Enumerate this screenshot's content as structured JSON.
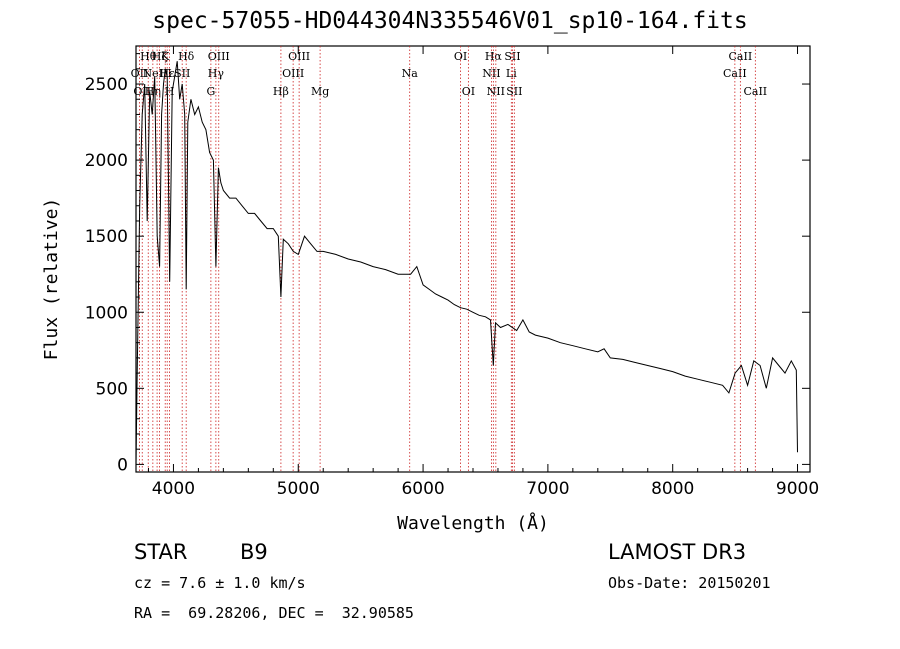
{
  "chart_data": {
    "type": "line",
    "title": "spec-57055-HD044304N335546V01_sp10-164.fits",
    "xlabel": "Wavelength (Å)",
    "ylabel": "Flux (relative)",
    "xlim": [
      3700,
      9100
    ],
    "ylim": [
      -50,
      2750
    ],
    "xticks": [
      {
        "value": 4000,
        "label": "4000"
      },
      {
        "value": 5000,
        "label": "5000"
      },
      {
        "value": 6000,
        "label": "6000"
      },
      {
        "value": 7000,
        "label": "7000"
      },
      {
        "value": 8000,
        "label": "8000"
      },
      {
        "value": 9000,
        "label": "9000"
      }
    ],
    "yticks": [
      {
        "value": 0,
        "label": "0"
      },
      {
        "value": 500,
        "label": "500"
      },
      {
        "value": 1000,
        "label": "1000"
      },
      {
        "value": 1500,
        "label": "1500"
      },
      {
        "value": 2000,
        "label": "2000"
      },
      {
        "value": 2500,
        "label": "2500"
      }
    ],
    "series": [
      {
        "name": "spectrum",
        "x": [
          3700,
          3710,
          3730,
          3750,
          3770,
          3790,
          3810,
          3830,
          3850,
          3870,
          3889,
          3905,
          3920,
          3935,
          3950,
          3970,
          3990,
          4010,
          4030,
          4050,
          4070,
          4090,
          4102,
          4115,
          4140,
          4170,
          4200,
          4230,
          4260,
          4290,
          4320,
          4340,
          4360,
          4380,
          4400,
          4450,
          4500,
          4550,
          4600,
          4650,
          4700,
          4750,
          4800,
          4840,
          4861,
          4880,
          4920,
          4960,
          5000,
          5050,
          5100,
          5150,
          5200,
          5300,
          5400,
          5500,
          5600,
          5700,
          5800,
          5900,
          5950,
          6000,
          6050,
          6100,
          6150,
          6200,
          6250,
          6300,
          6350,
          6400,
          6450,
          6500,
          6540,
          6563,
          6580,
          6620,
          6680,
          6750,
          6800,
          6850,
          6900,
          7000,
          7100,
          7200,
          7300,
          7400,
          7450,
          7500,
          7600,
          7700,
          7800,
          7900,
          8000,
          8100,
          8200,
          8300,
          8400,
          8450,
          8500,
          8550,
          8600,
          8650,
          8700,
          8750,
          8800,
          8850,
          8900,
          8950,
          8990,
          9000
        ],
        "y": [
          0,
          600,
          1700,
          2300,
          2500,
          1600,
          2450,
          2300,
          2550,
          1500,
          1300,
          2300,
          2500,
          2600,
          2550,
          1200,
          2450,
          2550,
          2650,
          2400,
          2500,
          2300,
          1150,
          2250,
          2400,
          2300,
          2350,
          2250,
          2200,
          2050,
          2000,
          1300,
          1950,
          1850,
          1800,
          1750,
          1750,
          1700,
          1650,
          1650,
          1600,
          1550,
          1550,
          1500,
          1100,
          1480,
          1450,
          1400,
          1380,
          1500,
          1450,
          1400,
          1400,
          1380,
          1350,
          1330,
          1300,
          1280,
          1250,
          1250,
          1300,
          1180,
          1150,
          1120,
          1100,
          1080,
          1050,
          1030,
          1020,
          1000,
          980,
          970,
          950,
          650,
          930,
          900,
          920,
          880,
          950,
          870,
          850,
          830,
          800,
          780,
          760,
          740,
          760,
          700,
          690,
          670,
          650,
          630,
          610,
          580,
          560,
          540,
          520,
          470,
          600,
          650,
          520,
          680,
          650,
          500,
          700,
          650,
          600,
          680,
          620,
          80
        ]
      }
    ],
    "lines": [
      {
        "x": 3728,
        "label": "OII",
        "row": 2
      },
      {
        "x": 3750,
        "label": "OII",
        "row": 3
      },
      {
        "x": 3798,
        "label": "Hθ",
        "row": 1
      },
      {
        "x": 3835,
        "label": "Hη",
        "row": 3
      },
      {
        "x": 3869,
        "label": "NeIII",
        "row": 2
      },
      {
        "x": 3889,
        "label": "Hζ",
        "row": 1
      },
      {
        "x": 3934,
        "label": "K",
        "row": 1
      },
      {
        "x": 3950,
        "label": "Hε",
        "row": 2
      },
      {
        "x": 3969,
        "label": "H",
        "row": 3
      },
      {
        "x": 4070,
        "label": "SII",
        "row": 2
      },
      {
        "x": 4102,
        "label": "Hδ",
        "row": 1
      },
      {
        "x": 4300,
        "label": "G",
        "row": 3
      },
      {
        "x": 4340,
        "label": "Hγ",
        "row": 2
      },
      {
        "x": 4363,
        "label": "OIII",
        "row": 1
      },
      {
        "x": 4861,
        "label": "Hβ",
        "row": 3
      },
      {
        "x": 4959,
        "label": "OIII",
        "row": 2
      },
      {
        "x": 5007,
        "label": "OIII",
        "row": 1
      },
      {
        "x": 5175,
        "label": "Mg",
        "row": 3
      },
      {
        "x": 5893,
        "label": "Na",
        "row": 2
      },
      {
        "x": 6300,
        "label": "OI",
        "row": 1
      },
      {
        "x": 6363,
        "label": "OI",
        "row": 3
      },
      {
        "x": 6548,
        "label": "NII",
        "row": 2
      },
      {
        "x": 6563,
        "label": "Hα",
        "row": 1
      },
      {
        "x": 6583,
        "label": "NII",
        "row": 3
      },
      {
        "x": 6707,
        "label": "Li",
        "row": 2
      },
      {
        "x": 6716,
        "label": "SII",
        "row": 1
      },
      {
        "x": 6731,
        "label": "SII",
        "row": 3
      },
      {
        "x": 8498,
        "label": "CaII",
        "row": 2
      },
      {
        "x": 8542,
        "label": "CaII",
        "row": 1
      },
      {
        "x": 8662,
        "label": "CaII",
        "row": 3
      }
    ]
  },
  "info": {
    "object_type": "STAR",
    "subclass": "B9",
    "survey": "LAMOST DR3",
    "cz": "cz = 7.6 ± 1.0 km/s",
    "obs_date": "Obs-Date: 20150201",
    "coords": "RA =  69.28206, DEC =  32.90585"
  }
}
